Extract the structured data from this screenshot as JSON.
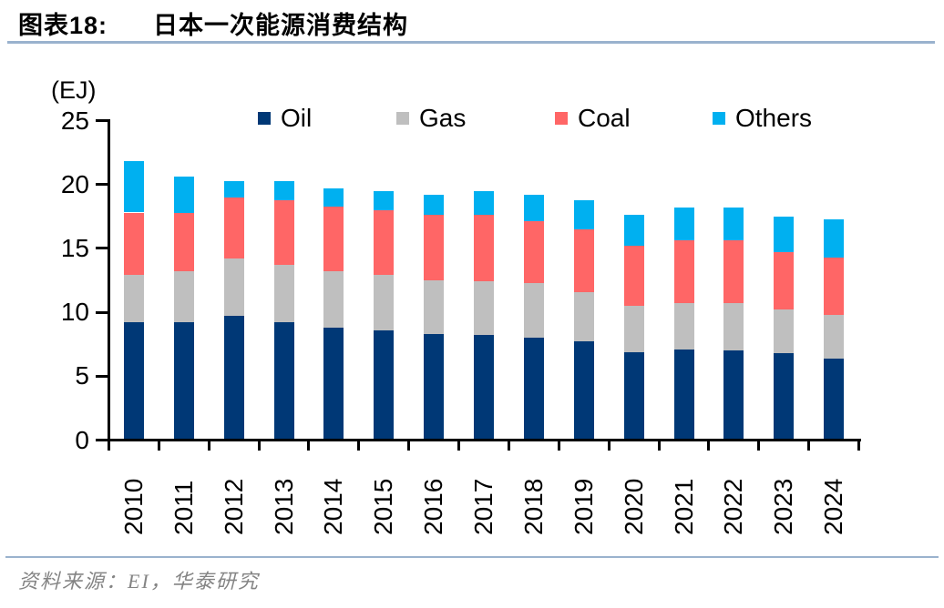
{
  "header": {
    "figure_label": "图表18:",
    "title": "日本一次能源消费结构",
    "rule_color": "#9AB2CE"
  },
  "chart_data": {
    "type": "bar",
    "stacked": true,
    "title": "日本一次能源消费结构",
    "unit_label": "(EJ)",
    "ylabel": "(EJ)",
    "xlabel": "",
    "ylim": [
      0,
      25
    ],
    "y_ticks": [
      25,
      20,
      15,
      10,
      5,
      0
    ],
    "grid": false,
    "legend_position": "top",
    "categories": [
      "2010",
      "2011",
      "2012",
      "2013",
      "2014",
      "2015",
      "2016",
      "2017",
      "2018",
      "2019",
      "2020",
      "2021",
      "2022",
      "2023",
      "2024"
    ],
    "series": [
      {
        "name": "Oil",
        "color": "#003876",
        "values": [
          9.1,
          9.1,
          9.6,
          9.1,
          8.7,
          8.5,
          8.2,
          8.1,
          7.9,
          7.6,
          6.8,
          7.0,
          6.9,
          6.7,
          6.3
        ]
      },
      {
        "name": "Gas",
        "color": "#BFBFBF",
        "values": [
          3.7,
          4.0,
          4.5,
          4.5,
          4.4,
          4.3,
          4.2,
          4.2,
          4.3,
          3.9,
          3.6,
          3.6,
          3.7,
          3.4,
          3.4
        ]
      },
      {
        "name": "Coal",
        "color": "#FF6666",
        "values": [
          4.9,
          4.6,
          4.8,
          5.1,
          5.1,
          5.1,
          5.1,
          5.2,
          4.8,
          4.9,
          4.7,
          4.9,
          4.9,
          4.5,
          4.5
        ]
      },
      {
        "name": "Others",
        "color": "#00B0F0",
        "values": [
          4.0,
          2.8,
          1.3,
          1.5,
          1.4,
          1.5,
          1.6,
          1.9,
          2.1,
          2.3,
          2.4,
          2.6,
          2.6,
          2.8,
          3.0
        ]
      }
    ],
    "totals": [
      21.7,
      20.5,
      20.2,
      20.2,
      19.6,
      19.4,
      19.1,
      19.4,
      19.1,
      18.7,
      17.5,
      18.1,
      18.1,
      17.4,
      17.2
    ]
  },
  "footer": {
    "source": "资料来源：EI，华泰研究",
    "source_color": "#848484",
    "rule_color": "#9AB2CE"
  }
}
